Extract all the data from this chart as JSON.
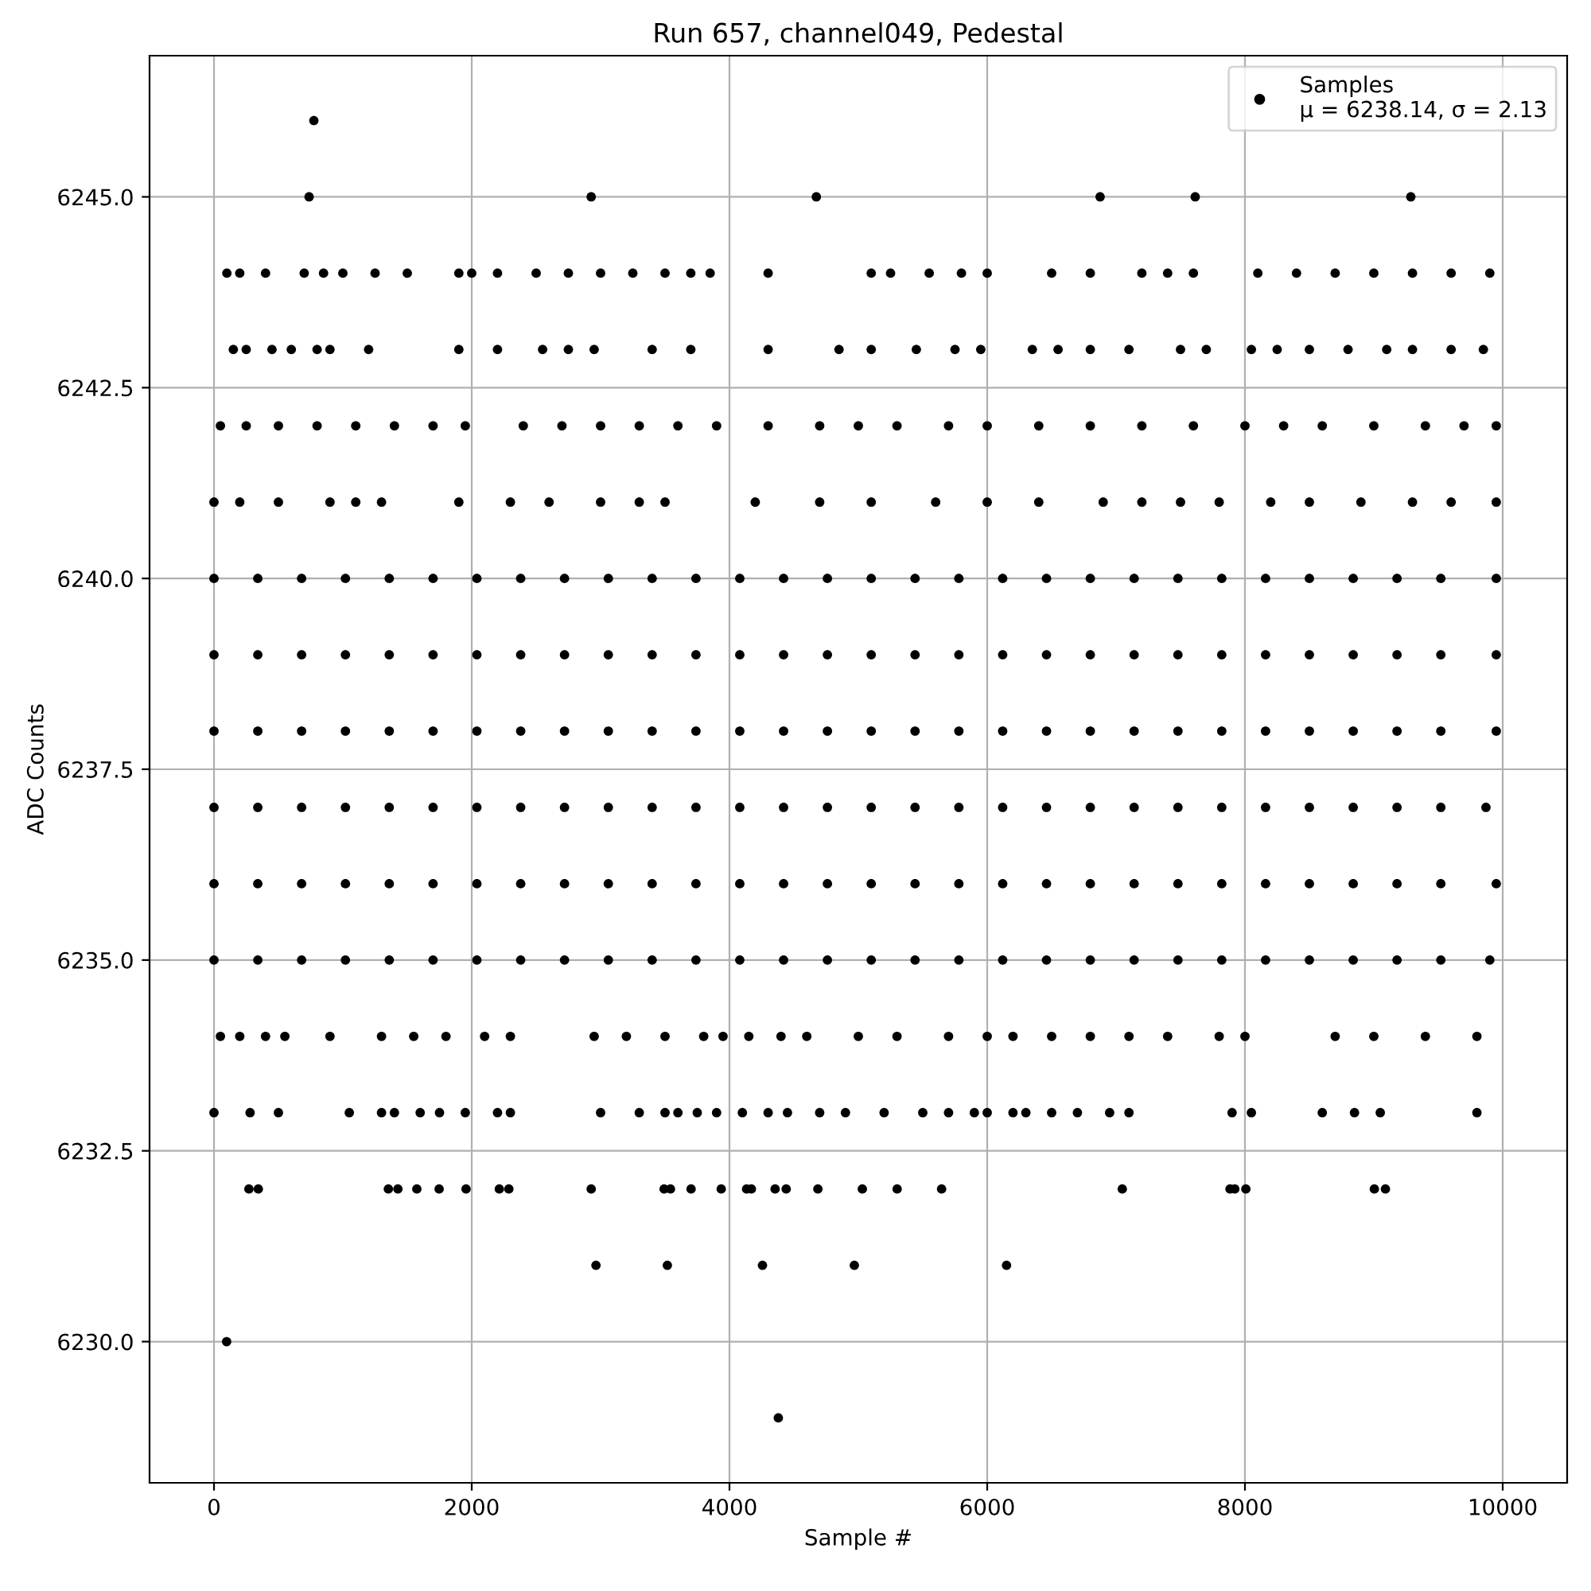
{
  "chart_data": {
    "type": "scatter",
    "title": "Run 657, channel049, Pedestal",
    "xlabel": "Sample #",
    "ylabel": "ADC Counts",
    "xlim": [
      -500,
      10500
    ],
    "xticks": [
      0,
      2000,
      4000,
      6000,
      8000,
      10000
    ],
    "ylim": [
      6228.15,
      6246.85
    ],
    "yticks": [
      {
        "value": 6230,
        "label": "6230.0"
      },
      {
        "value": 6232.5,
        "label": "6232.5"
      },
      {
        "value": 6235,
        "label": "6235.0"
      },
      {
        "value": 6237.5,
        "label": "6237.5"
      },
      {
        "value": 6240,
        "label": "6240.0"
      },
      {
        "value": 6242.5,
        "label": "6242.5"
      },
      {
        "value": 6245,
        "label": "6245.0"
      }
    ],
    "grid": true,
    "legend": "top right",
    "marker": "circle",
    "series": [
      {
        "name": "Samples\nμ = 6238.14, σ = 2.13",
        "color": "#000000",
        "x": [
          0,
          340,
          680,
          1020,
          1360,
          1700,
          2040,
          2380,
          2720,
          3060,
          3400,
          3740,
          4080,
          4420,
          4760,
          5100,
          5440,
          5780,
          6120,
          6460,
          6800,
          7140,
          7480,
          7820,
          8160,
          8500,
          8840,
          9180,
          9520,
          9950
        ],
        "values": [
          6238,
          6238,
          6238,
          6238,
          6238,
          6238,
          6238,
          6238,
          6238,
          6238,
          6238,
          6238,
          6238,
          6238,
          6238,
          6238,
          6238,
          6238,
          6238,
          6238,
          6238,
          6238,
          6238,
          6238,
          6238,
          6238,
          6238,
          6238,
          6238,
          6238
        ]
      },
      {
        "color": "#000000",
        "x": [
          0,
          340,
          680,
          1020,
          1360,
          1700,
          2040,
          2380,
          2720,
          3060,
          3400,
          3740,
          4080,
          4420,
          4760,
          5100,
          5440,
          5780,
          6120,
          6460,
          6800,
          7140,
          7480,
          7820,
          8160,
          8500,
          8840,
          9180,
          9520,
          9950
        ],
        "values": [
          6239,
          6239,
          6239,
          6239,
          6239,
          6239,
          6239,
          6239,
          6239,
          6239,
          6239,
          6239,
          6239,
          6239,
          6239,
          6239,
          6239,
          6239,
          6239,
          6239,
          6239,
          6239,
          6239,
          6239,
          6239,
          6239,
          6239,
          6239,
          6239,
          6239
        ]
      },
      {
        "color": "#000000",
        "x": [
          0,
          340,
          680,
          1020,
          1360,
          1700,
          2040,
          2380,
          2720,
          3060,
          3400,
          3740,
          4080,
          4420,
          4760,
          5100,
          5440,
          5780,
          6120,
          6460,
          6800,
          7140,
          7480,
          7820,
          8160,
          8500,
          8840,
          9180,
          9520,
          9950
        ],
        "values": [
          6240,
          6240,
          6240,
          6240,
          6240,
          6240,
          6240,
          6240,
          6240,
          6240,
          6240,
          6240,
          6240,
          6240,
          6240,
          6240,
          6240,
          6240,
          6240,
          6240,
          6240,
          6240,
          6240,
          6240,
          6240,
          6240,
          6240,
          6240,
          6240,
          6240
        ]
      },
      {
        "color": "#000000",
        "x": [
          0,
          340,
          680,
          1020,
          1360,
          1700,
          2040,
          2380,
          2720,
          3060,
          3400,
          3740,
          4080,
          4420,
          4760,
          5100,
          5440,
          5780,
          6120,
          6460,
          6800,
          7140,
          7480,
          7820,
          8160,
          8500,
          8840,
          9180,
          9520,
          9870
        ],
        "values": [
          6237,
          6237,
          6237,
          6237,
          6237,
          6237,
          6237,
          6237,
          6237,
          6237,
          6237,
          6237,
          6237,
          6237,
          6237,
          6237,
          6237,
          6237,
          6237,
          6237,
          6237,
          6237,
          6237,
          6237,
          6237,
          6237,
          6237,
          6237,
          6237,
          6237
        ]
      },
      {
        "color": "#000000",
        "x": [
          0,
          340,
          680,
          1020,
          1360,
          1700,
          2040,
          2380,
          2720,
          3060,
          3400,
          3740,
          4080,
          4420,
          4760,
          5100,
          5440,
          5780,
          6120,
          6460,
          6800,
          7140,
          7480,
          7820,
          8160,
          8500,
          8840,
          9180,
          9520,
          9950
        ],
        "values": [
          6236,
          6236,
          6236,
          6236,
          6236,
          6236,
          6236,
          6236,
          6236,
          6236,
          6236,
          6236,
          6236,
          6236,
          6236,
          6236,
          6236,
          6236,
          6236,
          6236,
          6236,
          6236,
          6236,
          6236,
          6236,
          6236,
          6236,
          6236,
          6236,
          6236
        ]
      },
      {
        "color": "#000000",
        "x": [
          0,
          340,
          680,
          1020,
          1360,
          1700,
          2040,
          2380,
          2720,
          3060,
          3400,
          3740,
          4080,
          4420,
          4760,
          5100,
          5440,
          5780,
          6120,
          6460,
          6800,
          7140,
          7480,
          7820,
          8160,
          8500,
          8840,
          9180,
          9520,
          9900
        ],
        "values": [
          6235,
          6235,
          6235,
          6235,
          6235,
          6235,
          6235,
          6235,
          6235,
          6235,
          6235,
          6235,
          6235,
          6235,
          6235,
          6235,
          6235,
          6235,
          6235,
          6235,
          6235,
          6235,
          6235,
          6235,
          6235,
          6235,
          6235,
          6235,
          6235,
          6235
        ]
      },
      {
        "color": "#000000",
        "x": [
          0,
          200,
          500,
          900,
          1100,
          1300,
          1900,
          2300,
          2600,
          3000,
          3300,
          3500,
          4200,
          4700,
          5100,
          5600,
          6000,
          6400,
          6900,
          7200,
          7500,
          7800,
          8200,
          8500,
          8900,
          9300,
          9600,
          9950
        ],
        "values": [
          6241,
          6241,
          6241,
          6241,
          6241,
          6241,
          6241,
          6241,
          6241,
          6241,
          6241,
          6241,
          6241,
          6241,
          6241,
          6241,
          6241,
          6241,
          6241,
          6241,
          6241,
          6241,
          6241,
          6241,
          6241,
          6241,
          6241,
          6241
        ]
      },
      {
        "color": "#000000",
        "x": [
          50,
          250,
          500,
          800,
          1100,
          1400,
          1700,
          1950,
          2400,
          2700,
          3000,
          3300,
          3600,
          3900,
          4300,
          4700,
          5000,
          5300,
          5700,
          6000,
          6400,
          6800,
          7200,
          7600,
          8000,
          8300,
          8600,
          9000,
          9400,
          9700,
          9950
        ],
        "values": [
          6242,
          6242,
          6242,
          6242,
          6242,
          6242,
          6242,
          6242,
          6242,
          6242,
          6242,
          6242,
          6242,
          6242,
          6242,
          6242,
          6242,
          6242,
          6242,
          6242,
          6242,
          6242,
          6242,
          6242,
          6242,
          6242,
          6242,
          6242,
          6242,
          6242,
          6242
        ]
      },
      {
        "color": "#000000",
        "x": [
          50,
          200,
          400,
          550,
          900,
          1300,
          1550,
          1800,
          2100,
          2300,
          2950,
          3200,
          3500,
          3800,
          3950,
          4150,
          4400,
          4600,
          5000,
          5300,
          5700,
          6000,
          6200,
          6500,
          6800,
          7100,
          7400,
          7800,
          8000,
          8700,
          9000,
          9400,
          9800
        ],
        "values": [
          6234,
          6234,
          6234,
          6234,
          6234,
          6234,
          6234,
          6234,
          6234,
          6234,
          6234,
          6234,
          6234,
          6234,
          6234,
          6234,
          6234,
          6234,
          6234,
          6234,
          6234,
          6234,
          6234,
          6234,
          6234,
          6234,
          6234,
          6234,
          6234,
          6234,
          6234,
          6234,
          6234
        ]
      },
      {
        "color": "#000000",
        "x": [
          0,
          280,
          500,
          1050,
          1300,
          1400,
          1600,
          1750,
          1950,
          2200,
          2300,
          3000,
          3300,
          3500,
          3600,
          3750,
          3900,
          4100,
          4300,
          4450,
          4700,
          4900,
          5200,
          5500,
          5700,
          5900,
          6000,
          6200,
          6300,
          6500,
          6700,
          6950,
          7100,
          7900,
          8050,
          8600,
          8850,
          9050,
          9800
        ],
        "values": [
          6233,
          6233,
          6233,
          6233,
          6233,
          6233,
          6233,
          6233,
          6233,
          6233,
          6233,
          6233,
          6233,
          6233,
          6233,
          6233,
          6233,
          6233,
          6233,
          6233,
          6233,
          6233,
          6233,
          6233,
          6233,
          6233,
          6233,
          6233,
          6233,
          6233,
          6233,
          6233,
          6233,
          6233,
          6233,
          6233,
          6233,
          6233,
          6233
        ]
      },
      {
        "color": "#000000",
        "x": [
          150,
          250,
          450,
          600,
          800,
          900,
          1200,
          1900,
          2200,
          2550,
          2750,
          2950,
          3400,
          3700,
          4300,
          4850,
          5100,
          5450,
          5750,
          5950,
          6350,
          6550,
          6800,
          7100,
          7500,
          7700,
          8050,
          8250,
          8500,
          8800,
          9100,
          9300,
          9600,
          9850
        ],
        "values": [
          6243,
          6243,
          6243,
          6243,
          6243,
          6243,
          6243,
          6243,
          6243,
          6243,
          6243,
          6243,
          6243,
          6243,
          6243,
          6243,
          6243,
          6243,
          6243,
          6243,
          6243,
          6243,
          6243,
          6243,
          6243,
          6243,
          6243,
          6243,
          6243,
          6243,
          6243,
          6243,
          6243,
          6243
        ]
      },
      {
        "color": "#000000",
        "x": [
          100,
          200,
          400,
          700,
          850,
          1000,
          1250,
          1500,
          1900,
          2000,
          2200,
          2500,
          2750,
          3000,
          3250,
          3500,
          3700,
          3850,
          4300,
          5100,
          5250,
          5550,
          5800,
          6000,
          6500,
          6800,
          7200,
          7400,
          7600,
          8100,
          8400,
          8700,
          9000,
          9300,
          9600,
          9900
        ],
        "values": [
          6244,
          6244,
          6244,
          6244,
          6244,
          6244,
          6244,
          6244,
          6244,
          6244,
          6244,
          6244,
          6244,
          6244,
          6244,
          6244,
          6244,
          6244,
          6244,
          6244,
          6244,
          6244,
          6244,
          6244,
          6244,
          6244,
          6244,
          6244,
          6244,
          6244,
          6244,
          6244,
          6244,
          6244,
          6244,
          6244
        ]
      },
      {
        "color": "#000000",
        "x": [
          271,
          344,
          1353,
          1427,
          1574,
          1747,
          1956,
          2214,
          2288,
          2927,
          3493,
          3542,
          3702,
          3936,
          4133,
          4170,
          4354,
          4440,
          4686,
          5031,
          5301,
          5646,
          7048,
          7884,
          7921,
          8007,
          9004,
          9090
        ],
        "values": [
          6232,
          6232,
          6232,
          6232,
          6232,
          6232,
          6232,
          6232,
          6232,
          6232,
          6232,
          6232,
          6232,
          6232,
          6232,
          6232,
          6232,
          6232,
          6232,
          6232,
          6232,
          6232,
          6232,
          6232,
          6232,
          6232,
          6232,
          6232
        ]
      },
      {
        "color": "#000000",
        "x": [
          2964,
          3518,
          4256,
          4969,
          6150,
          98,
          4379,
          775,
          738,
          2927,
          4674,
          6876,
          7614,
          9287
        ],
        "values": [
          6231,
          6231,
          6231,
          6231,
          6231,
          6230,
          6229,
          6246,
          6245,
          6245,
          6245,
          6245,
          6245,
          6245
        ]
      }
    ]
  }
}
